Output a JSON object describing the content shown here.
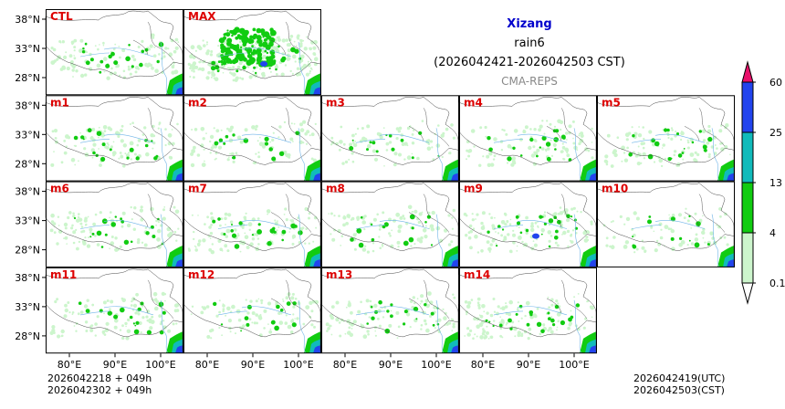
{
  "header": {
    "title": "Xizang",
    "variable": "rain6",
    "period": "(2026042421-2026042503 CST)",
    "source": "CMA-REPS"
  },
  "panels": [
    "CTL",
    "MAX",
    "m1",
    "m2",
    "m3",
    "m4",
    "m5",
    "m6",
    "m7",
    "m8",
    "m9",
    "m10",
    "m11",
    "m12",
    "m13",
    "m14"
  ],
  "panel_density": [
    0.9,
    1.8,
    0.8,
    0.7,
    0.6,
    0.8,
    0.8,
    0.8,
    0.9,
    0.7,
    1.0,
    0.6,
    0.8,
    0.7,
    0.8,
    1.0
  ],
  "latitude_ticks": [
    "38°N",
    "33°N",
    "28°N"
  ],
  "longitude_ticks": [
    "80°E",
    "90°E",
    "100°E"
  ],
  "colorbar": {
    "levels": [
      "0.1",
      "4",
      "13",
      "25",
      "60"
    ],
    "colors": [
      "#ccf5cc",
      "#11cc11",
      "#11bbbb",
      "#2244ee",
      "#e8106a"
    ]
  },
  "footer": {
    "left_line1": "2026042218  +  049h",
    "left_line2": "2026042302  +  049h",
    "right_line1": "2026042419(UTC)",
    "right_line2": "2026042503(CST)"
  },
  "colors": {
    "label": "#dd0000",
    "title": "#0000cc",
    "border": "#444444",
    "river": "#6fb4e8"
  }
}
